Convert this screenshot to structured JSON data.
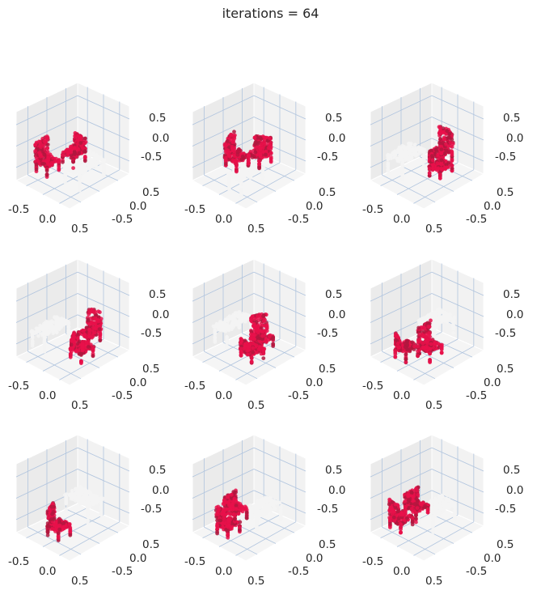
{
  "title": "iterations = 64",
  "colors": {
    "pane_face": "#ebebeb",
    "pane_edge": "#ffffff",
    "grid": "#b0c4de",
    "text": "#262626",
    "chair_points": "#e8104a",
    "chair_points_shadow": "#b0183e",
    "table_points": "#f4f4f4"
  },
  "chart_data": [
    {
      "type": "scatter",
      "projection": "3d",
      "xticks": [
        "-0.5",
        "0.0",
        "0.5"
      ],
      "yticks": [
        "0.5",
        "0.0",
        "-0.5"
      ],
      "zticks": [
        "0.5",
        "0.0",
        "-0.5"
      ],
      "xlim": [
        -0.8,
        0.8
      ],
      "ylim": [
        -0.8,
        0.8
      ],
      "zlim": [
        -0.8,
        0.8
      ],
      "grid": true,
      "series": [
        {
          "role": "chairs",
          "color": "#e8104a"
        },
        {
          "role": "table",
          "color": "#f4f4f4"
        }
      ]
    },
    {
      "type": "scatter",
      "projection": "3d",
      "xticks": [
        "-0.5",
        "0.0",
        "0.5"
      ],
      "yticks": [
        "0.5",
        "0.0",
        "-0.5"
      ],
      "zticks": [
        "0.5",
        "0.0",
        "-0.5"
      ],
      "xlim": [
        -0.8,
        0.8
      ],
      "ylim": [
        -0.8,
        0.8
      ],
      "zlim": [
        -0.8,
        0.8
      ],
      "grid": true,
      "series": [
        {
          "role": "chairs",
          "color": "#e8104a"
        },
        {
          "role": "table",
          "color": "#f4f4f4"
        }
      ]
    },
    {
      "type": "scatter",
      "projection": "3d",
      "xticks": [
        "-0.5",
        "0.0",
        "0.5"
      ],
      "yticks": [
        "0.5",
        "0.0",
        "-0.5"
      ],
      "zticks": [
        "0.5",
        "0.0",
        "-0.5"
      ],
      "xlim": [
        -0.8,
        0.8
      ],
      "ylim": [
        -0.8,
        0.8
      ],
      "zlim": [
        -0.8,
        0.8
      ],
      "grid": true,
      "series": [
        {
          "role": "chairs",
          "color": "#e8104a"
        },
        {
          "role": "table",
          "color": "#f4f4f4"
        }
      ]
    },
    {
      "type": "scatter",
      "projection": "3d",
      "xticks": [
        "-0.5",
        "0.0",
        "0.5"
      ],
      "yticks": [
        "0.5",
        "0.0",
        "-0.5"
      ],
      "zticks": [
        "0.5",
        "0.0",
        "-0.5"
      ],
      "xlim": [
        -0.8,
        0.8
      ],
      "ylim": [
        -0.8,
        0.8
      ],
      "zlim": [
        -0.8,
        0.8
      ],
      "grid": true,
      "series": [
        {
          "role": "chairs",
          "color": "#e8104a"
        },
        {
          "role": "table",
          "color": "#f4f4f4"
        }
      ]
    },
    {
      "type": "scatter",
      "projection": "3d",
      "xticks": [
        "-0.5",
        "0.0",
        "0.5"
      ],
      "yticks": [
        "0.5",
        "0.0",
        "-0.5"
      ],
      "zticks": [
        "0.5",
        "0.0",
        "-0.5"
      ],
      "xlim": [
        -0.8,
        0.8
      ],
      "ylim": [
        -0.8,
        0.8
      ],
      "zlim": [
        -0.8,
        0.8
      ],
      "grid": true,
      "series": [
        {
          "role": "chairs",
          "color": "#e8104a"
        },
        {
          "role": "table",
          "color": "#f4f4f4"
        }
      ]
    },
    {
      "type": "scatter",
      "projection": "3d",
      "xticks": [
        "-0.5",
        "0.0",
        "0.5"
      ],
      "yticks": [
        "0.5",
        "0.0",
        "-0.5"
      ],
      "zticks": [
        "0.5",
        "0.0",
        "-0.5"
      ],
      "xlim": [
        -0.8,
        0.8
      ],
      "ylim": [
        -0.8,
        0.8
      ],
      "zlim": [
        -0.8,
        0.8
      ],
      "grid": true,
      "series": [
        {
          "role": "chairs",
          "color": "#e8104a"
        },
        {
          "role": "table",
          "color": "#f4f4f4"
        }
      ]
    },
    {
      "type": "scatter",
      "projection": "3d",
      "xticks": [
        "-0.5",
        "0.0",
        "0.5"
      ],
      "yticks": [
        "0.5",
        "0.0",
        "-0.5"
      ],
      "zticks": [
        "0.5",
        "0.0",
        "-0.5"
      ],
      "xlim": [
        -0.8,
        0.8
      ],
      "ylim": [
        -0.8,
        0.8
      ],
      "zlim": [
        -0.8,
        0.8
      ],
      "grid": true,
      "series": [
        {
          "role": "chairs",
          "color": "#e8104a"
        },
        {
          "role": "table",
          "color": "#f4f4f4"
        }
      ]
    },
    {
      "type": "scatter",
      "projection": "3d",
      "xticks": [
        "-0.5",
        "0.0",
        "0.5"
      ],
      "yticks": [
        "0.5",
        "0.0",
        "-0.5"
      ],
      "zticks": [
        "0.5",
        "0.0",
        "-0.5"
      ],
      "xlim": [
        -0.8,
        0.8
      ],
      "ylim": [
        -0.8,
        0.8
      ],
      "zlim": [
        -0.8,
        0.8
      ],
      "grid": true,
      "series": [
        {
          "role": "chairs",
          "color": "#e8104a"
        },
        {
          "role": "table",
          "color": "#f4f4f4"
        }
      ]
    },
    {
      "type": "scatter",
      "projection": "3d",
      "xticks": [
        "-0.5",
        "0.0",
        "0.5"
      ],
      "yticks": [
        "0.5",
        "0.0",
        "-0.5"
      ],
      "zticks": [
        "0.5",
        "0.0",
        "-0.5"
      ],
      "xlim": [
        -0.8,
        0.8
      ],
      "ylim": [
        -0.8,
        0.8
      ],
      "zlim": [
        -0.8,
        0.8
      ],
      "grid": true,
      "series": [
        {
          "role": "chairs",
          "color": "#e8104a"
        },
        {
          "role": "table",
          "color": "#f4f4f4"
        }
      ]
    }
  ]
}
